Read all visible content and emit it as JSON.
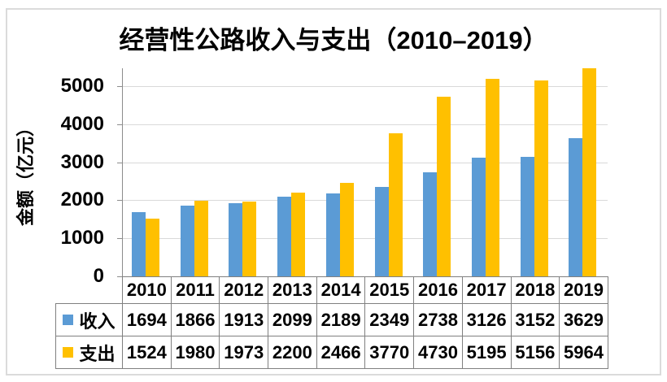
{
  "chart_data": {
    "type": "bar",
    "title": "经营性公路收入与支出（2010–2019）",
    "ylabel": "金额（亿元）",
    "xlabel": "",
    "categories": [
      "2010",
      "2011",
      "2012",
      "2013",
      "2014",
      "2015",
      "2016",
      "2017",
      "2018",
      "2019"
    ],
    "series": [
      {
        "name": "收入",
        "color": "#5B9BD5",
        "values": [
          1694,
          1866,
          1913,
          2099,
          2189,
          2349,
          2738,
          3126,
          3152,
          3629
        ]
      },
      {
        "name": "支出",
        "color": "#FFC000",
        "values": [
          1524,
          1980,
          1973,
          2200,
          2466,
          3770,
          4730,
          5195,
          5156,
          5964
        ]
      }
    ],
    "y_ticks": [
      0,
      1000,
      2000,
      3000,
      4000,
      5000
    ],
    "ylim": [
      0,
      5470
    ],
    "grid": true,
    "legend_position": "data-table-left",
    "data_table_shown": true
  },
  "colors": {
    "income_bar": "#5B9BD5",
    "expense_bar": "#FFC000",
    "gridline": "#d9d9d9",
    "axis_line": "#8c8c8c",
    "table_border": "#808080",
    "figure_border": "#dbdbdb",
    "background": "#ffffff",
    "text": "#000000"
  }
}
